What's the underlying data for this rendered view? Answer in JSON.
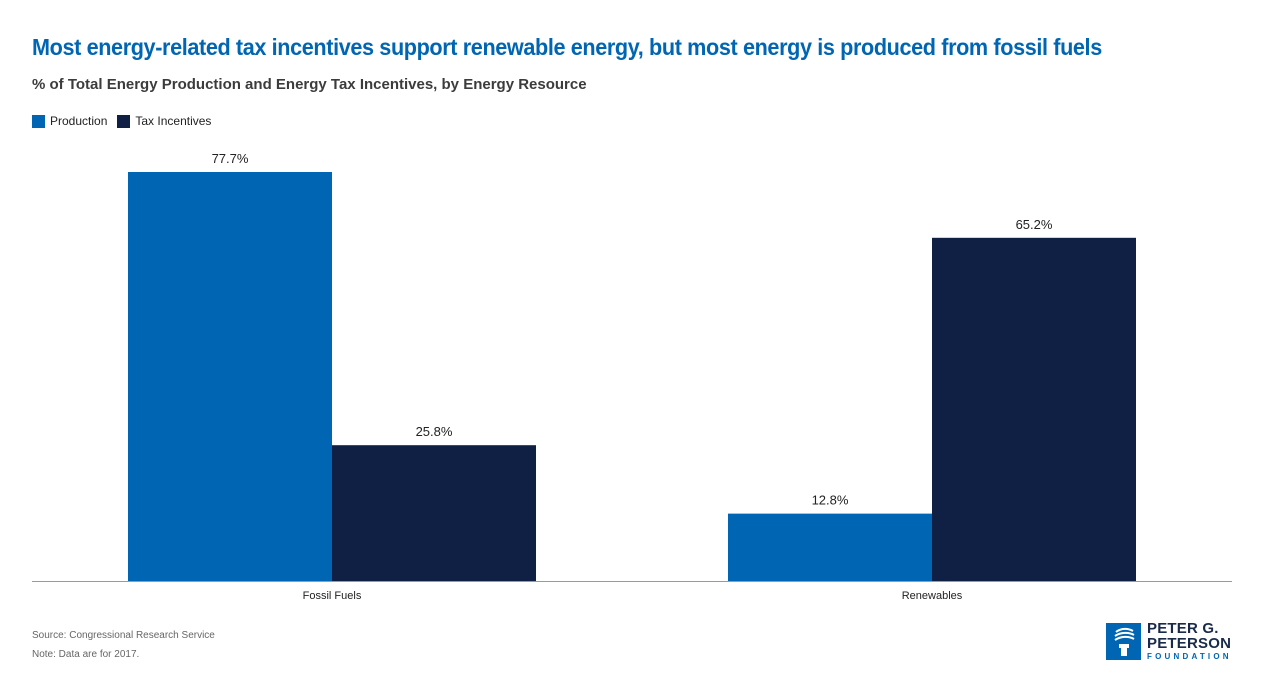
{
  "title": "Most energy-related tax incentives support renewable energy, but most energy is produced from fossil fuels",
  "subtitle": "% of Total Energy Production and Energy Tax Incentives, by Energy Resource",
  "legend": [
    {
      "label": "Production",
      "color": "#0066b3"
    },
    {
      "label": "Tax Incentives",
      "color": "#0f2044"
    }
  ],
  "chart_data": {
    "type": "bar",
    "categories": [
      "Fossil Fuels",
      "Renewables"
    ],
    "series": [
      {
        "name": "Production",
        "values": [
          77.7,
          12.8
        ],
        "labels": [
          "77.7%",
          "12.8%"
        ],
        "color": "#0066b3"
      },
      {
        "name": "Tax Incentives",
        "values": [
          25.8,
          65.2
        ],
        "labels": [
          "25.8%",
          "65.2%"
        ],
        "color": "#0f2044"
      }
    ],
    "ylim": [
      0,
      80
    ],
    "grid": false,
    "legend_position": "top-left"
  },
  "footer": {
    "source": "Source: Congressional Research Service",
    "note": "Note: Data are for 2017."
  },
  "logo": {
    "line1": "PETER G.",
    "line2": "PETERSON",
    "line3": "FOUNDATION"
  }
}
